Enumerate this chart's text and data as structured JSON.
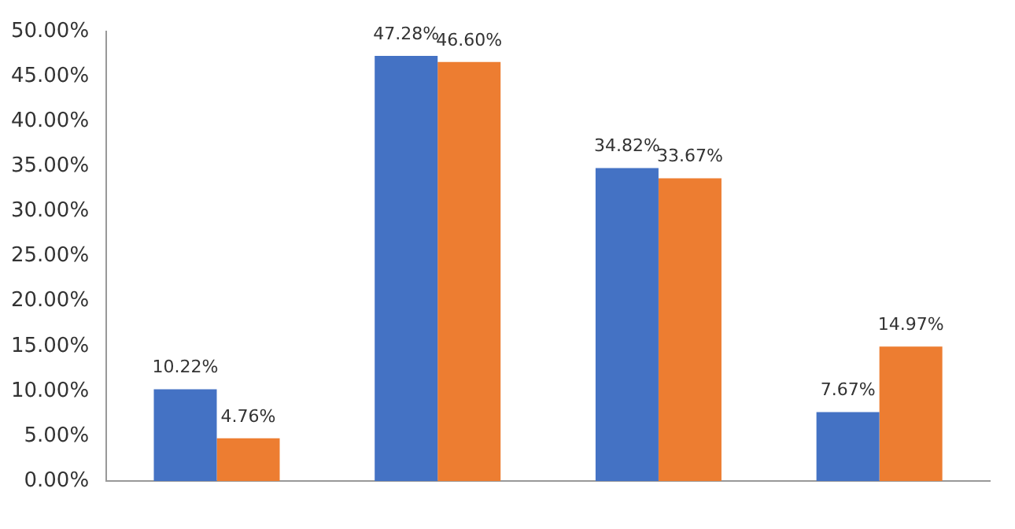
{
  "chart_data": {
    "type": "bar",
    "categories": [
      null,
      null,
      null,
      null
    ],
    "series": [
      {
        "color": "#4472c4",
        "values": [
          10.22,
          47.28,
          34.82,
          7.67
        ],
        "value_labels": [
          "10.22%",
          "47.28%",
          "34.82%",
          "7.67%"
        ]
      },
      {
        "color": "#ed7d31",
        "values": [
          4.76,
          46.6,
          33.67,
          14.97
        ],
        "value_labels": [
          "4.76%",
          "46.60%",
          "33.67%",
          "14.97%"
        ]
      }
    ],
    "ylim": [
      0,
      50
    ],
    "yticks": [
      {
        "value": 0,
        "label": "0.00%"
      },
      {
        "value": 5,
        "label": "5.00%"
      },
      {
        "value": 10,
        "label": "10.00%"
      },
      {
        "value": 15,
        "label": "15.00%"
      },
      {
        "value": 20,
        "label": "20.00%"
      },
      {
        "value": 25,
        "label": "25.00%"
      },
      {
        "value": 30,
        "label": "30.00%"
      },
      {
        "value": 35,
        "label": "35.00%"
      },
      {
        "value": 40,
        "label": "40.00%"
      },
      {
        "value": 45,
        "label": "45.00%"
      },
      {
        "value": 50,
        "label": "50.00%"
      }
    ],
    "grid": false,
    "legend": false
  }
}
